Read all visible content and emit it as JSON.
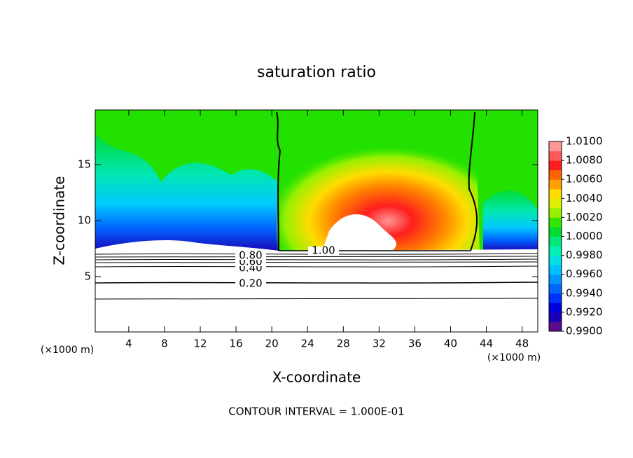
{
  "chart_data": {
    "type": "contour",
    "title": "saturation ratio",
    "x_label": "X-coordinate",
    "y_label": "Z-coordinate",
    "x_unit_label_left": "(×1000 m)",
    "x_unit_label_right": "(×1000 m)",
    "footer": "CONTOUR INTERVAL = 1.000E-01",
    "xlim": [
      0.25,
      49.75
    ],
    "ylim": [
      0.06,
      19.88
    ],
    "xticks": [
      4,
      8,
      12,
      16,
      20,
      24,
      28,
      32,
      36,
      40,
      44,
      48
    ],
    "yticks": [
      5,
      10,
      15
    ],
    "contour_levels": [
      {
        "value": 0.2,
        "label": "0.20"
      },
      {
        "value": 0.4,
        "label": "0.40"
      },
      {
        "value": 0.6,
        "label": "0.60"
      },
      {
        "value": 0.8,
        "label": "0.80"
      },
      {
        "value": 1.0,
        "label": "1.00"
      }
    ],
    "colorbar": {
      "lim": [
        0.99,
        1.01
      ],
      "ticks": [
        {
          "value": 0.99,
          "label": "0.9900"
        },
        {
          "value": 0.992,
          "label": "0.9920"
        },
        {
          "value": 0.994,
          "label": "0.9940"
        },
        {
          "value": 0.996,
          "label": "0.9960"
        },
        {
          "value": 0.998,
          "label": "0.9980"
        },
        {
          "value": 1.0,
          "label": "1.0000"
        },
        {
          "value": 1.002,
          "label": "1.0020"
        },
        {
          "value": 1.004,
          "label": "1.0040"
        },
        {
          "value": 1.006,
          "label": "1.0060"
        },
        {
          "value": 1.008,
          "label": "1.0080"
        },
        {
          "value": 1.01,
          "label": "1.0100"
        }
      ],
      "colors": [
        "#5a0a8c",
        "#1a00b4",
        "#0000dc",
        "#0032ff",
        "#0064ff",
        "#0096ff",
        "#00c0ff",
        "#00e0e6",
        "#00f0b4",
        "#00e678",
        "#00dc32",
        "#32e600",
        "#96f000",
        "#dcf000",
        "#ffdc00",
        "#ffa000",
        "#ff6400",
        "#ff1e1e",
        "#ff5a5a",
        "#ff9696"
      ]
    }
  }
}
